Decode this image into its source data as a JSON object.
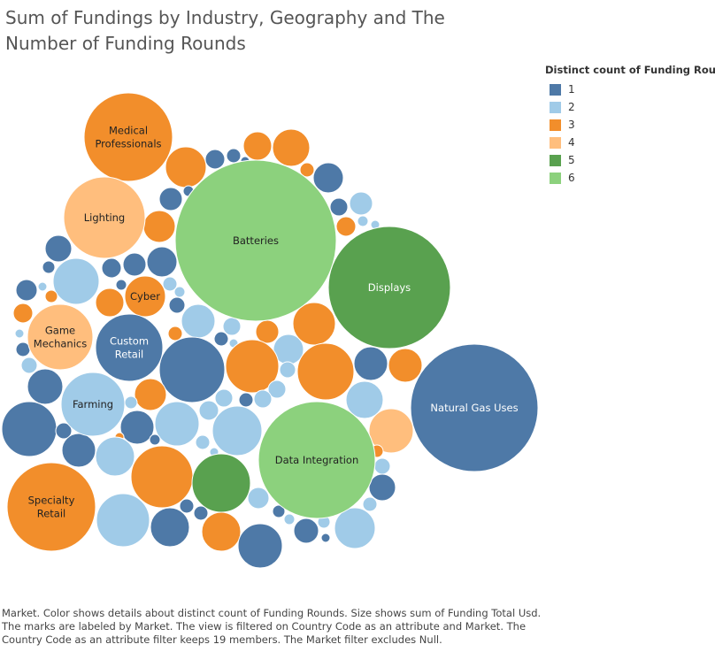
{
  "title": "Sum of Fundings by Industry, Geography and The Number of Funding Rounds",
  "legend": {
    "title": "Distinct count of Funding Rounds",
    "items": [
      {
        "label": "1",
        "color": "#4e79a7"
      },
      {
        "label": "2",
        "color": "#a0cbe8"
      },
      {
        "label": "3",
        "color": "#f28e2b"
      },
      {
        "label": "4",
        "color": "#ffbe7d"
      },
      {
        "label": "5",
        "color": "#59a14f"
      },
      {
        "label": "6",
        "color": "#8cd17d"
      }
    ]
  },
  "footer": {
    "caption": "Market.  Color shows details about distinct count of Funding Rounds.  Size shows sum of Funding Total Usd.  The marks are labeled by Market. The view is filtered on Country Code as an attribute and Market. The Country Code as an attribute filter keeps 19 members. The Market filter excludes Null."
  },
  "chart_data": {
    "type": "packed-bubble",
    "color_field": "Distinct count of Funding Rounds",
    "size_field": "sum of Funding Total Usd",
    "label_field": "Market",
    "labeled_bubbles": [
      {
        "market": "Batteries",
        "rounds": 6
      },
      {
        "market": "Displays",
        "rounds": 5
      },
      {
        "market": "Natural Gas Uses",
        "rounds": 1
      },
      {
        "market": "Data Integration",
        "rounds": 6
      },
      {
        "market": "Medical Professionals",
        "rounds": 3
      },
      {
        "market": "Lighting",
        "rounds": 4
      },
      {
        "market": "Cyber",
        "rounds": 3
      },
      {
        "market": "Game Mechanics",
        "rounds": 4
      },
      {
        "market": "Custom Retail",
        "rounds": 1
      },
      {
        "market": "Farming",
        "rounds": 2
      },
      {
        "market": "Specialty Retail",
        "rounds": 3
      }
    ]
  }
}
